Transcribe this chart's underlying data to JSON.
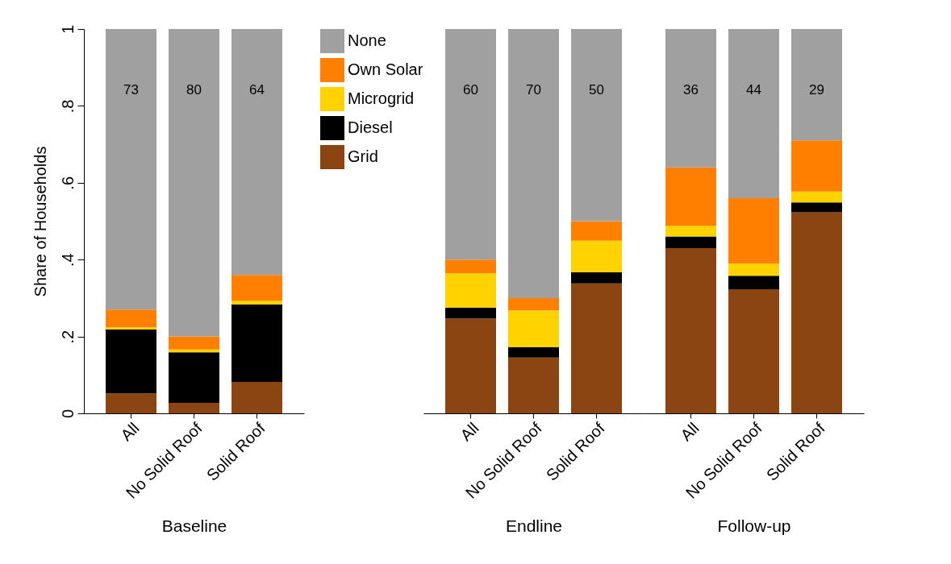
{
  "chart_data": [
    {
      "type": "bar",
      "stacked": true,
      "ylabel": "Share of Households",
      "xlabel": "Baseline",
      "categories": [
        "All",
        "No Solid Roof",
        "Solid Roof"
      ],
      "series": [
        {
          "name": "Grid",
          "color": "#8b4513",
          "values": [
            0.052,
            0.027,
            0.082
          ]
        },
        {
          "name": "Diesel",
          "color": "#000000",
          "values": [
            0.166,
            0.132,
            0.201
          ]
        },
        {
          "name": "Microgrid",
          "color": "#ffd200",
          "values": [
            0.006,
            0.007,
            0.01
          ]
        },
        {
          "name": "Own Solar",
          "color": "#ff8000",
          "values": [
            0.046,
            0.034,
            0.067
          ]
        },
        {
          "name": "None",
          "color": "#a0a0a0",
          "values": [
            0.73,
            0.8,
            0.64
          ]
        }
      ],
      "ylim": [
        0,
        1
      ],
      "yticks": [
        0,
        {
          "value": 0.2,
          "label": ".2"
        },
        {
          "value": 0.4,
          "label": ".4"
        },
        {
          "value": 0.6,
          "label": ".6"
        },
        {
          "value": 0.8,
          "label": ".8"
        },
        1
      ],
      "annotations": [
        "73",
        "80",
        "64"
      ],
      "grid": false,
      "legend": "right"
    },
    {
      "type": "bar",
      "stacked": true,
      "xlabel": "Endline",
      "categories": [
        "All",
        "No Solid Roof",
        "Solid Roof"
      ],
      "series": [
        {
          "color": "#8b4513",
          "values": [
            0.247,
            0.145,
            0.338
          ]
        },
        {
          "color": "#000000",
          "values": [
            0.028,
            0.027,
            0.029
          ]
        },
        {
          "color": "#ffd200",
          "values": [
            0.09,
            0.096,
            0.082
          ]
        },
        {
          "color": "#ff8000",
          "values": [
            0.035,
            0.032,
            0.051
          ]
        },
        {
          "color": "#a0a0a0",
          "values": [
            0.6,
            0.7,
            0.5
          ]
        }
      ],
      "ylim": [
        0,
        1
      ],
      "tick_labels": "x",
      "annotations": [
        "60",
        "70",
        "50"
      ],
      "grid": false
    },
    {
      "type": "bar",
      "stacked": true,
      "xlabel": "Follow-up",
      "categories": [
        "All",
        "No Solid Roof",
        "Solid Roof"
      ],
      "series": [
        {
          "color": "#8b4513",
          "values": [
            0.43,
            0.323,
            0.523
          ]
        },
        {
          "color": "#000000",
          "values": [
            0.03,
            0.035,
            0.026
          ]
        },
        {
          "color": "#ffd200",
          "values": [
            0.028,
            0.032,
            0.028
          ]
        },
        {
          "color": "#ff8000",
          "values": [
            0.152,
            0.17,
            0.133
          ]
        },
        {
          "color": "#a0a0a0",
          "values": [
            0.36,
            0.44,
            0.29
          ]
        }
      ],
      "ylim": [
        0,
        1
      ],
      "tick_labels": "x",
      "annotations": [
        "36",
        "44",
        "29"
      ],
      "grid": false
    }
  ]
}
